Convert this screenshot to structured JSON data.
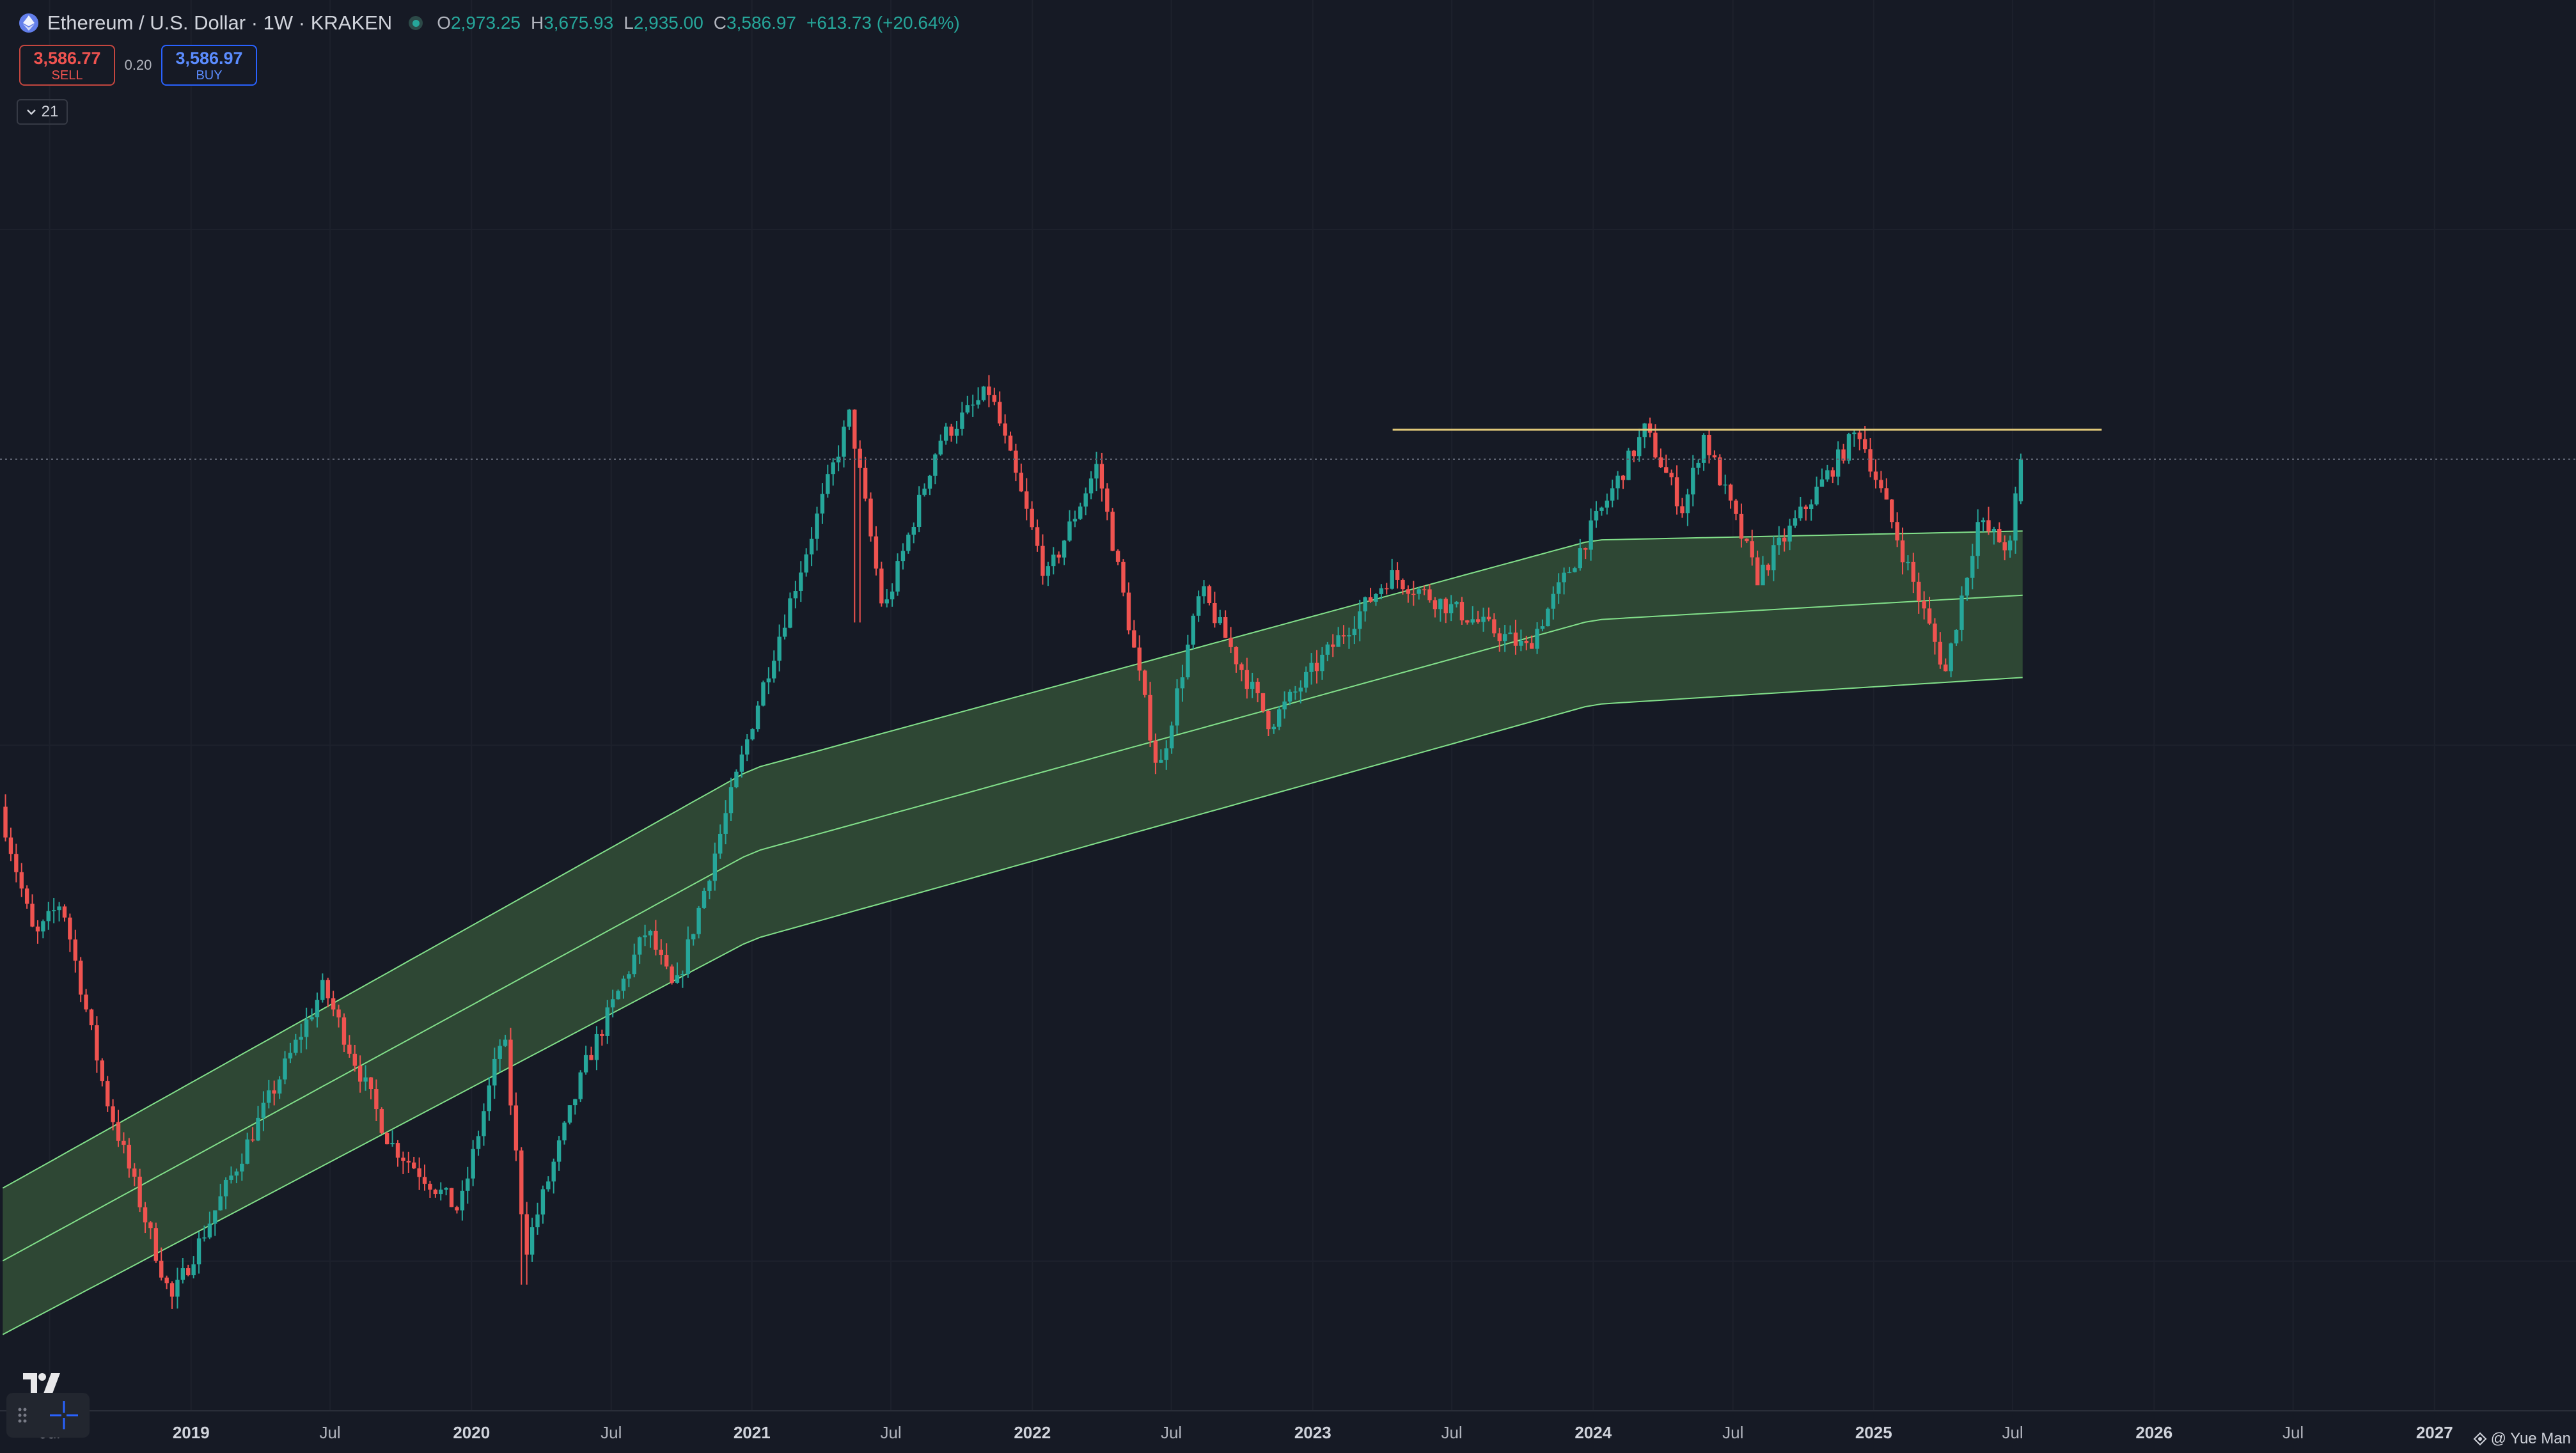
{
  "header": {
    "symbol_title": "Ethereum / U.S. Dollar · 1W · KRAKEN",
    "symbol_icon": "ethereum-icon",
    "ohlc": [
      {
        "key": "O",
        "value": "2,973.25"
      },
      {
        "key": "H",
        "value": "3,675.93"
      },
      {
        "key": "L",
        "value": "2,935.00"
      },
      {
        "key": "C",
        "value": "3,586.97"
      }
    ],
    "change": "+613.73 (+20.64%)"
  },
  "trade": {
    "sell_price": "3,586.77",
    "sell_label": "SELL",
    "spread": "0.20",
    "buy_price": "3,586.97",
    "buy_label": "BUY"
  },
  "indicators": {
    "count": "21",
    "toggle_icon": "chevron-down-icon"
  },
  "colors": {
    "background": "#161a25",
    "up": "#26a69a",
    "down": "#ef5350",
    "band_fill": "#2f4a35",
    "band_line": "#82e08a",
    "resistance_line": "#e0c879"
  },
  "chart_data": {
    "type": "candlestick",
    "timeframe": "1W",
    "x_axis_ticks": [
      {
        "label": "Jul",
        "date": "2018-07-01",
        "year": false
      },
      {
        "label": "2019",
        "date": "2019-01-01",
        "year": true
      },
      {
        "label": "Jul",
        "date": "2019-07-01",
        "year": false
      },
      {
        "label": "2020",
        "date": "2020-01-01",
        "year": true
      },
      {
        "label": "Jul",
        "date": "2020-07-01",
        "year": false
      },
      {
        "label": "2021",
        "date": "2021-01-01",
        "year": true
      },
      {
        "label": "Jul",
        "date": "2021-07-01",
        "year": false
      },
      {
        "label": "2022",
        "date": "2022-01-01",
        "year": true
      },
      {
        "label": "Jul",
        "date": "2022-07-01",
        "year": false
      },
      {
        "label": "2023",
        "date": "2023-01-01",
        "year": true
      },
      {
        "label": "Jul",
        "date": "2023-07-01",
        "year": false
      },
      {
        "label": "2024",
        "date": "2024-01-01",
        "year": true
      },
      {
        "label": "Jul",
        "date": "2024-07-01",
        "year": false
      },
      {
        "label": "2025",
        "date": "2025-01-01",
        "year": true
      },
      {
        "label": "Jul",
        "date": "2025-07-01",
        "year": false
      },
      {
        "label": "2026",
        "date": "2026-01-01",
        "year": true
      },
      {
        "label": "Jul",
        "date": "2026-07-01",
        "year": false
      },
      {
        "label": "2027",
        "date": "2027-01-01",
        "year": true
      }
    ],
    "price_path": [
      [
        "2018-05-01",
        760
      ],
      [
        "2018-06-15",
        420
      ],
      [
        "2018-07-20",
        500
      ],
      [
        "2018-09-15",
        210
      ],
      [
        "2018-12-10",
        84
      ],
      [
        "2019-06-26",
        340
      ],
      [
        "2019-09-20",
        170
      ],
      [
        "2019-12-20",
        125
      ],
      [
        "2020-02-15",
        280
      ],
      [
        "2020-03-15",
        105
      ],
      [
        "2020-06-01",
        240
      ],
      [
        "2020-08-20",
        440
      ],
      [
        "2020-09-25",
        330
      ],
      [
        "2021-01-15",
        1250
      ],
      [
        "2021-05-12",
        4380
      ],
      [
        "2021-06-25",
        1800
      ],
      [
        "2021-09-05",
        3900
      ],
      [
        "2021-11-10",
        4870
      ],
      [
        "2022-01-23",
        2100
      ],
      [
        "2022-03-30",
        3500
      ],
      [
        "2022-06-18",
        880
      ],
      [
        "2022-08-12",
        2000
      ],
      [
        "2022-11-10",
        1100
      ],
      [
        "2023-04-15",
        2140
      ],
      [
        "2023-10-10",
        1540
      ],
      [
        "2024-03-12",
        4090
      ],
      [
        "2024-05-01",
        2850
      ],
      [
        "2024-05-27",
        4000
      ],
      [
        "2024-08-05",
        2110
      ],
      [
        "2024-12-15",
        4100
      ],
      [
        "2025-04-08",
        1385
      ],
      [
        "2025-05-20",
        2700
      ],
      [
        "2025-07-01",
        2400
      ],
      [
        "2025-07-14",
        3586.97
      ]
    ],
    "horizontal_line": {
      "value": 4090,
      "from": "2023-04-15",
      "to": "2025-10-25"
    },
    "regression_band": {
      "from": "2018-05-01",
      "to": "2025-07-14",
      "upper": [
        [
          2018,
          110
        ],
        [
          2021,
          900
        ],
        [
          2024,
          2500
        ],
        [
          2025.5,
          2600
        ]
      ],
      "mid": [
        [
          2018,
          80
        ],
        [
          2021,
          620
        ],
        [
          2024,
          1750
        ],
        [
          2025.5,
          1950
        ]
      ],
      "lower": [
        [
          2018,
          58
        ],
        [
          2021,
          420
        ],
        [
          2024,
          1200
        ],
        [
          2025.5,
          1350
        ]
      ]
    },
    "current_price": 3586.97
  },
  "footer": {
    "author": "@ Yue Man",
    "author_icon": "watchlist-icon"
  }
}
